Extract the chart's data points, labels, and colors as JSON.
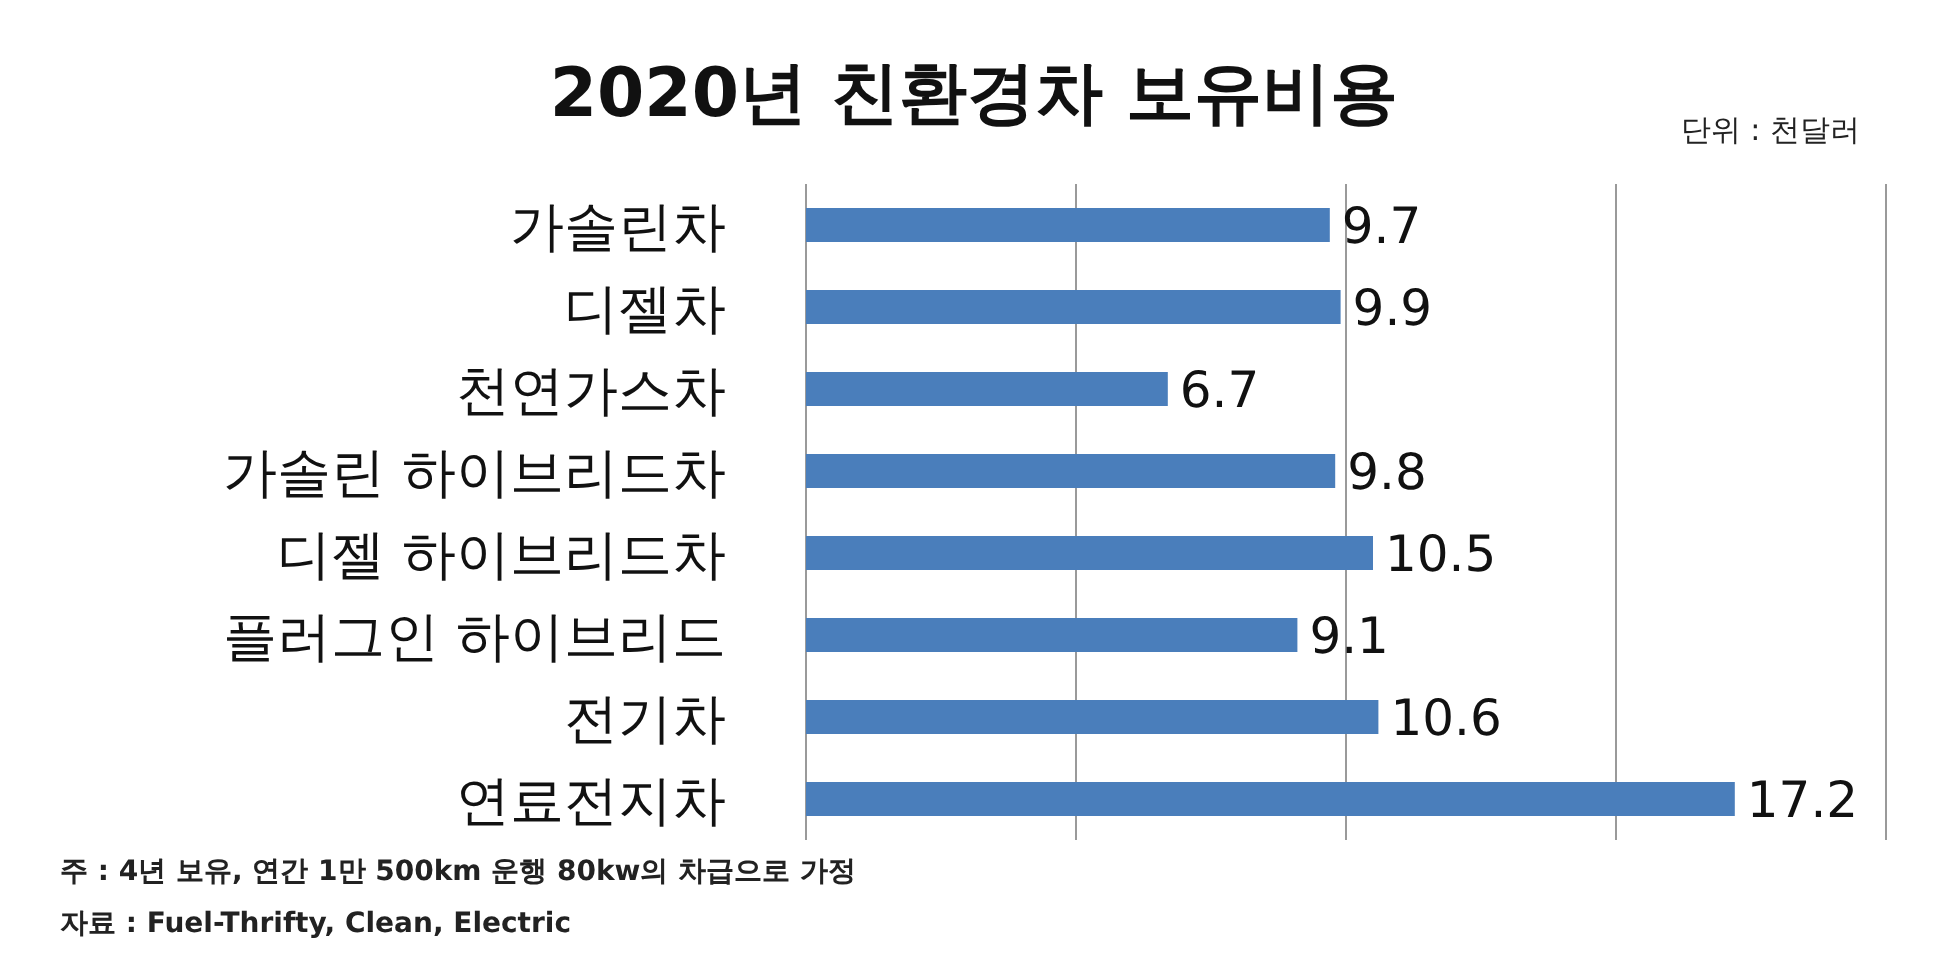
{
  "chart_data": {
    "type": "bar",
    "orientation": "horizontal",
    "title": "2020년 친환경차 보유비용",
    "subtitle": "단위 : 천달러",
    "categories": [
      "가솔린차",
      "디젤차",
      "천연가스차",
      "가솔린 하이브리드차",
      "디젤 하이브리드차",
      "플러그인 하이브리드",
      "전기차",
      "연료전지차"
    ],
    "values": [
      9.7,
      9.9,
      6.7,
      9.8,
      10.5,
      9.1,
      10.6,
      17.2
    ],
    "color": "#4a7ebb",
    "xlim": [
      0,
      20
    ],
    "xticks": [
      {
        "value": 0,
        "label": null
      },
      {
        "value": 5,
        "label": null
      },
      {
        "value": 10,
        "label": null
      },
      {
        "value": 15,
        "label": null
      },
      {
        "value": 20,
        "label": null
      }
    ],
    "grid": "x",
    "tick_labels": "y",
    "data_labels": true,
    "annotations": [
      "주 : 4년 보유, 연간 1만 500km 운행 80kw의 차급으로 가정",
      "자료 : Fuel-Thrifty, Clean, Electric"
    ]
  }
}
